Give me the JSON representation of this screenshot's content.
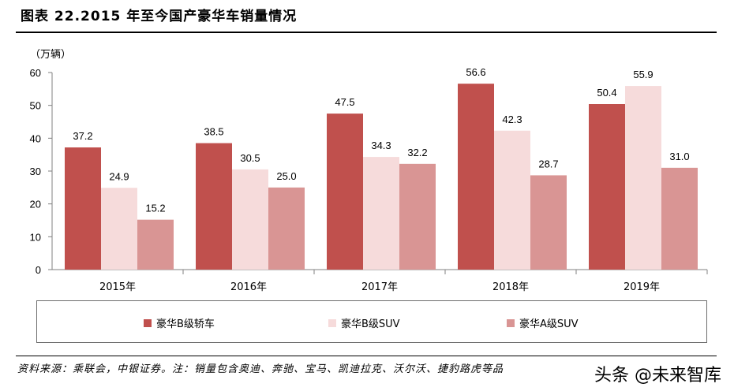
{
  "header": {
    "title": "图表 22.2015 年至今国产豪华车销量情况",
    "unit": "（万辆）"
  },
  "chart_data": {
    "type": "bar",
    "title": "2015 年至今国产豪华车销量情况",
    "ylabel": "（万辆）",
    "xlabel": "",
    "ylim": [
      0,
      60
    ],
    "yticks": [
      0,
      10,
      20,
      30,
      40,
      50,
      60
    ],
    "categories": [
      "2015年",
      "2016年",
      "2017年",
      "2018年",
      "2019年"
    ],
    "series": [
      {
        "name": "豪华B级轿车",
        "color": "#c0504d",
        "values": [
          37.2,
          38.5,
          47.5,
          56.6,
          50.4
        ]
      },
      {
        "name": "豪华B级SUV",
        "color": "#f6dbdb",
        "values": [
          24.9,
          30.5,
          34.3,
          42.3,
          55.9
        ]
      },
      {
        "name": "豪华A级SUV",
        "color": "#d99594",
        "values": [
          15.2,
          25.0,
          32.2,
          28.7,
          31.0
        ]
      }
    ],
    "legend_position": "bottom",
    "grid": false
  },
  "legend": {
    "items": [
      {
        "label": "豪华B级轿车",
        "color": "#c0504d"
      },
      {
        "label": "豪华B级SUV",
        "color": "#f6dbdb"
      },
      {
        "label": "豪华A级SUV",
        "color": "#d99594"
      }
    ]
  },
  "footer": {
    "source": "资料来源：乘联会，中银证券。注：销量包含奥迪、奔驰、宝马、凯迪拉克、沃尔沃、捷豹路虎等品",
    "watermark": "头条 @未来智库"
  }
}
